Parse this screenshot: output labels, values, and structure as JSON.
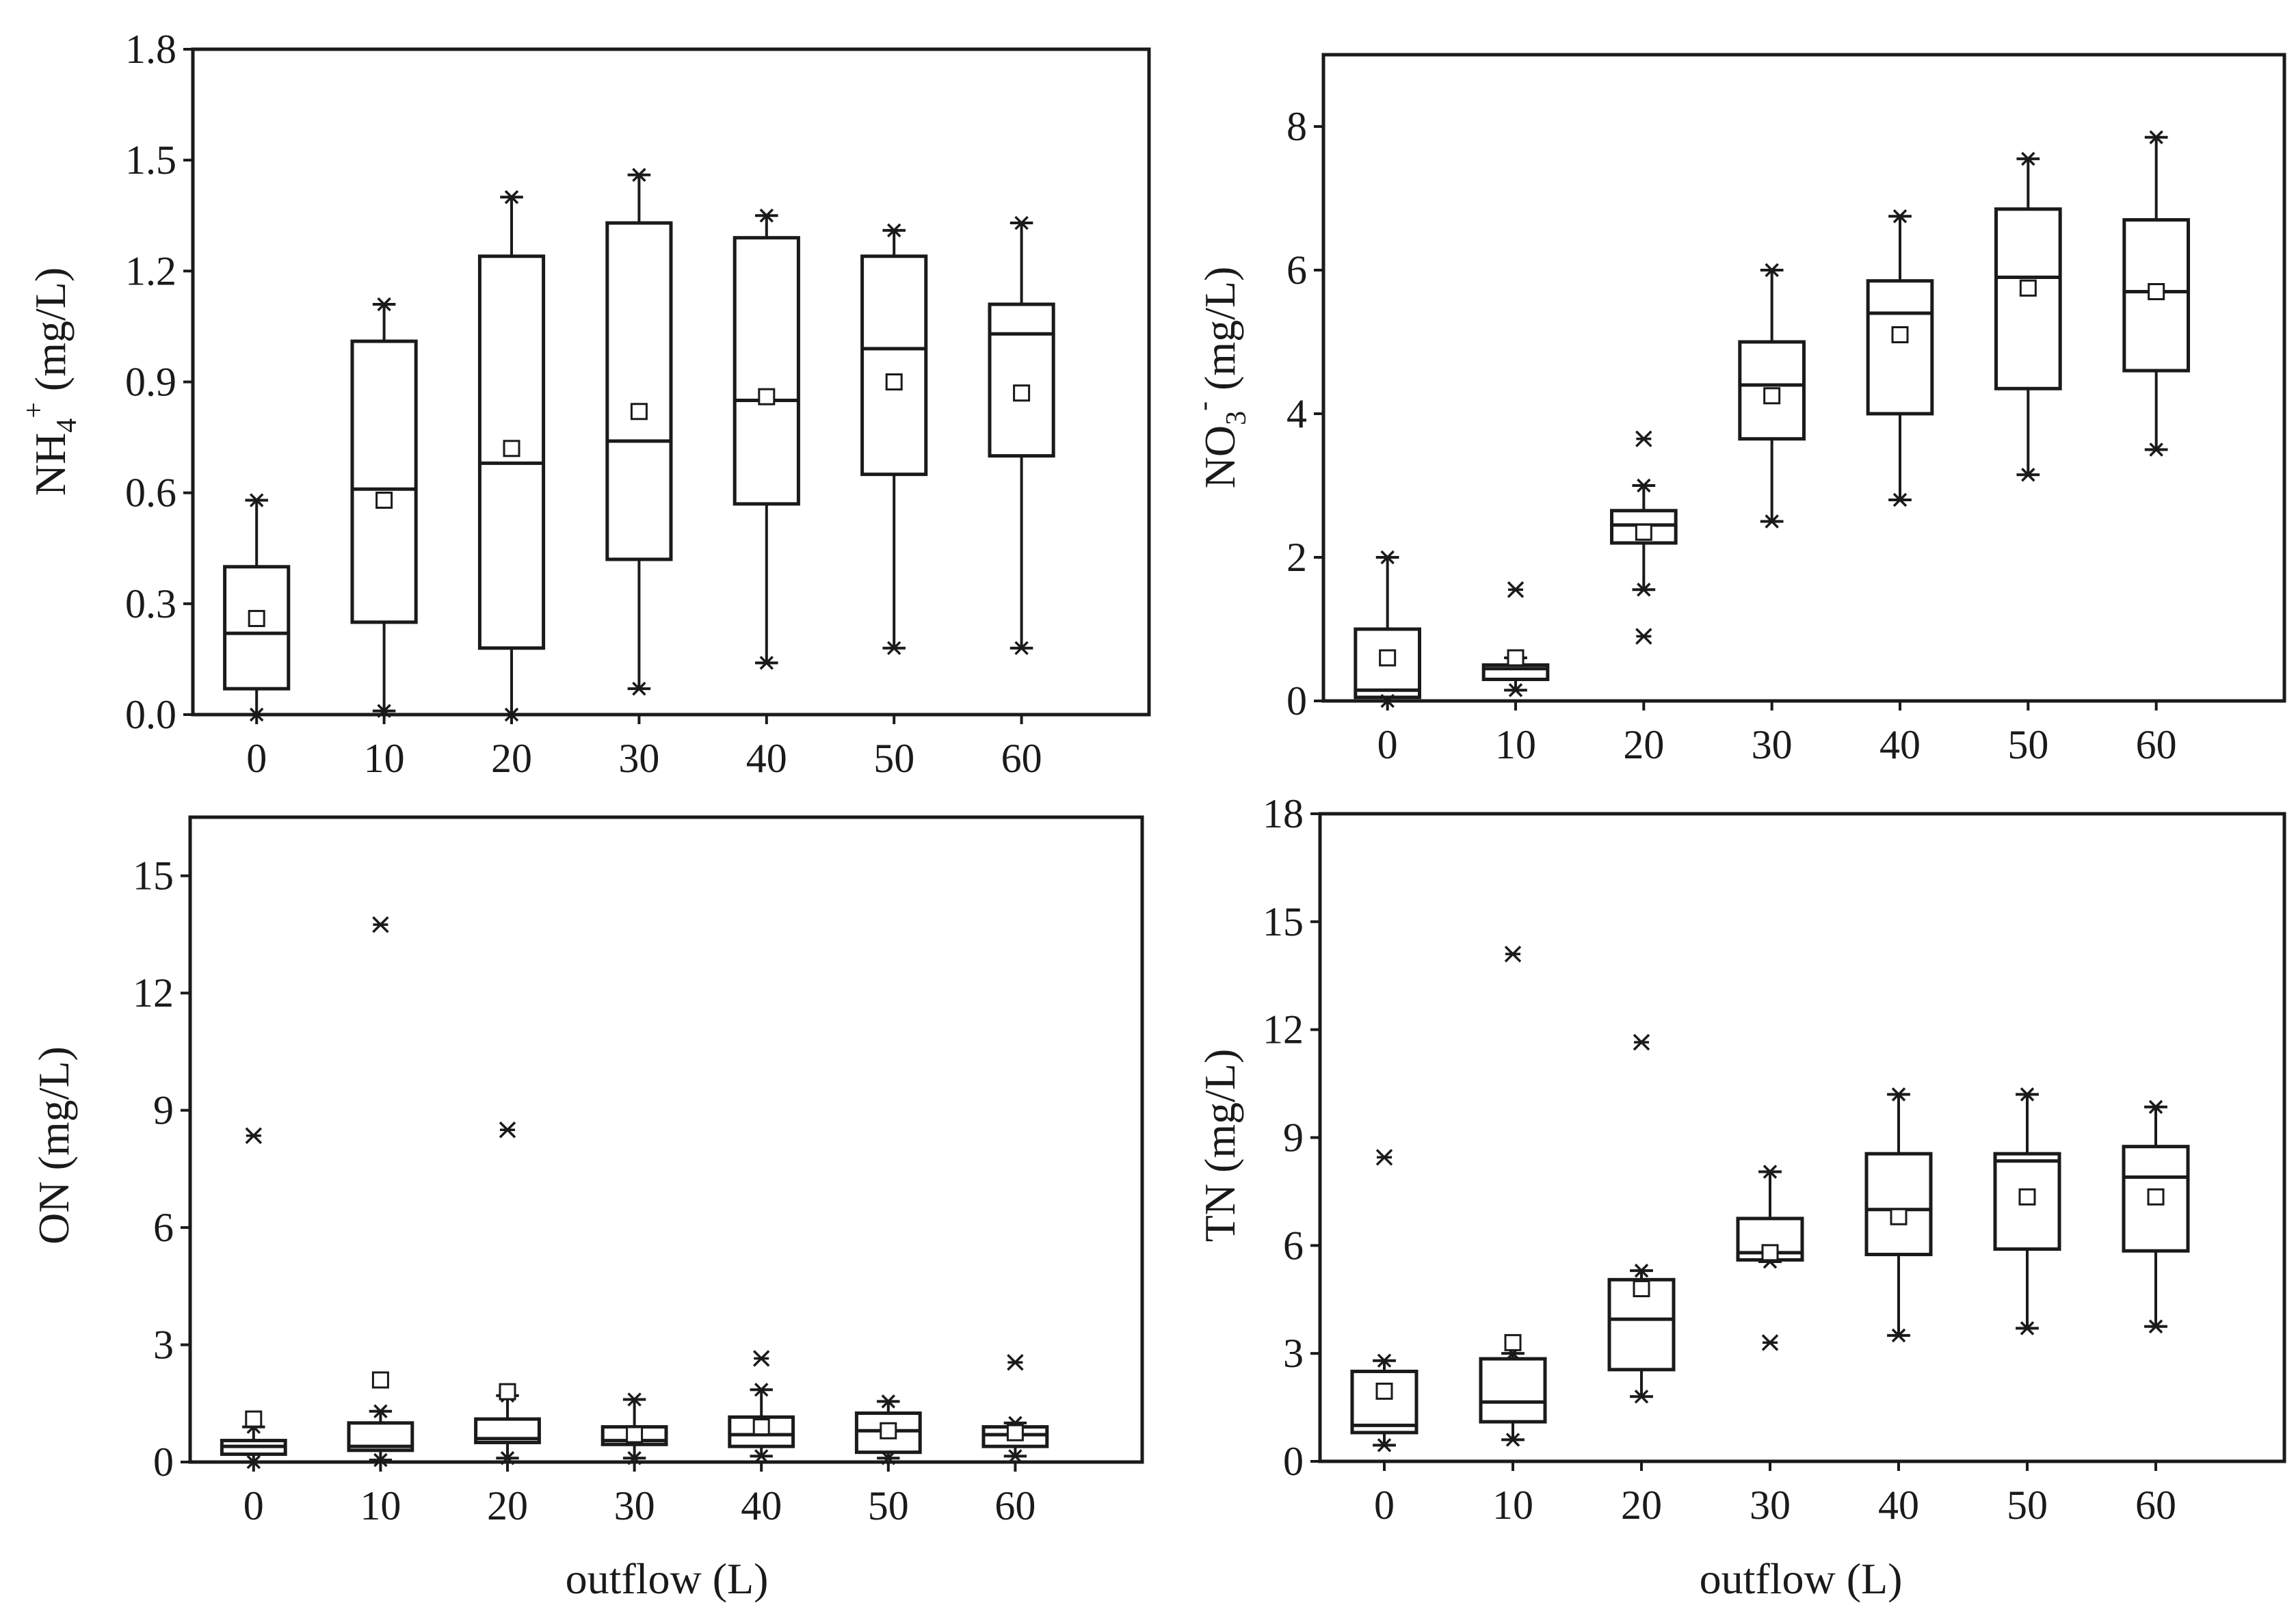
{
  "chart_data": [
    {
      "type": "box",
      "id": "nh4",
      "ylabel": "NH",
      "ylabel_sub": "4",
      "ylabel_sup": "+",
      "ylabel_unit": " (mg/L)",
      "xlabel": "",
      "ylim": [
        0,
        1.8
      ],
      "yticks": [
        "0.0",
        "0.3",
        "0.6",
        "0.9",
        "1.2",
        "1.5",
        "1.8"
      ],
      "ytick_values": [
        0,
        0.3,
        0.6,
        0.9,
        1.2,
        1.5,
        1.8
      ],
      "categories": [
        "0",
        "10",
        "20",
        "30",
        "40",
        "50",
        "60"
      ],
      "boxes": [
        {
          "min": 0.0,
          "q1": 0.07,
          "median": 0.22,
          "q3": 0.4,
          "max": 0.58,
          "mean": 0.26,
          "outliers": []
        },
        {
          "min": 0.01,
          "q1": 0.25,
          "median": 0.61,
          "q3": 1.01,
          "max": 1.11,
          "mean": 0.58,
          "outliers": []
        },
        {
          "min": 0.0,
          "q1": 0.18,
          "median": 0.68,
          "q3": 1.24,
          "max": 1.4,
          "mean": 0.72,
          "outliers": []
        },
        {
          "min": 0.07,
          "q1": 0.42,
          "median": 0.74,
          "q3": 1.33,
          "max": 1.46,
          "mean": 0.82,
          "outliers": []
        },
        {
          "min": 0.14,
          "q1": 0.57,
          "median": 0.85,
          "q3": 1.29,
          "max": 1.35,
          "mean": 0.86,
          "outliers": []
        },
        {
          "min": 0.18,
          "q1": 0.65,
          "median": 0.99,
          "q3": 1.24,
          "max": 1.31,
          "mean": 0.9,
          "outliers": []
        },
        {
          "min": 0.18,
          "q1": 0.7,
          "median": 1.03,
          "q3": 1.11,
          "max": 1.33,
          "mean": 0.87,
          "outliers": []
        }
      ]
    },
    {
      "type": "box",
      "id": "no3",
      "ylabel": "NO",
      "ylabel_sub": "3",
      "ylabel_sup": "-",
      "ylabel_unit": " (mg/L)",
      "xlabel": "",
      "ylim": [
        0,
        9
      ],
      "yticks": [
        "0",
        "2",
        "4",
        "6",
        "8"
      ],
      "ytick_values": [
        0,
        2,
        4,
        6,
        8
      ],
      "categories": [
        "0",
        "10",
        "20",
        "30",
        "40",
        "50",
        "60"
      ],
      "boxes": [
        {
          "min": 0.0,
          "q1": 0.05,
          "median": 0.15,
          "q3": 1.0,
          "max": 2.0,
          "mean": 0.6,
          "outliers": []
        },
        {
          "min": 0.15,
          "q1": 0.3,
          "median": 0.45,
          "q3": 0.5,
          "max": 0.6,
          "mean": 0.6,
          "outliers": [
            1.55
          ]
        },
        {
          "min": 1.55,
          "q1": 2.2,
          "median": 2.45,
          "q3": 2.65,
          "max": 3.0,
          "mean": 2.35,
          "outliers": [
            3.65,
            0.9
          ]
        },
        {
          "min": 2.5,
          "q1": 3.65,
          "median": 4.4,
          "q3": 5.0,
          "max": 6.0,
          "mean": 4.25,
          "outliers": []
        },
        {
          "min": 2.8,
          "q1": 4.0,
          "median": 5.4,
          "q3": 5.85,
          "max": 6.75,
          "mean": 5.1,
          "outliers": []
        },
        {
          "min": 3.15,
          "q1": 4.35,
          "median": 5.9,
          "q3": 6.85,
          "max": 7.55,
          "mean": 5.75,
          "outliers": []
        },
        {
          "min": 3.5,
          "q1": 4.6,
          "median": 5.7,
          "q3": 6.7,
          "max": 7.85,
          "mean": 5.7,
          "outliers": []
        }
      ]
    },
    {
      "type": "box",
      "id": "on",
      "ylabel": "ON (mg/L)",
      "xlabel": "outflow (L)",
      "ylim": [
        0,
        16.5
      ],
      "yticks": [
        "0",
        "3",
        "6",
        "9",
        "12",
        "15"
      ],
      "ytick_values": [
        0,
        3,
        6,
        9,
        12,
        15
      ],
      "categories": [
        "0",
        "10",
        "20",
        "30",
        "40",
        "50",
        "60"
      ],
      "boxes": [
        {
          "min": 0.0,
          "q1": 0.2,
          "median": 0.4,
          "q3": 0.55,
          "max": 0.9,
          "mean": 1.1,
          "outliers": [
            8.35
          ]
        },
        {
          "min": 0.05,
          "q1": 0.3,
          "median": 0.4,
          "q3": 1.0,
          "max": 1.3,
          "mean": 2.1,
          "outliers": [
            13.75
          ]
        },
        {
          "min": 0.1,
          "q1": 0.5,
          "median": 0.6,
          "q3": 1.1,
          "max": 1.7,
          "mean": 1.8,
          "outliers": [
            8.5
          ]
        },
        {
          "min": 0.1,
          "q1": 0.45,
          "median": 0.55,
          "q3": 0.9,
          "max": 1.6,
          "mean": 0.7,
          "outliers": []
        },
        {
          "min": 0.15,
          "q1": 0.4,
          "median": 0.7,
          "q3": 1.15,
          "max": 1.85,
          "mean": 0.9,
          "outliers": [
            2.65
          ]
        },
        {
          "min": 0.1,
          "q1": 0.25,
          "median": 0.8,
          "q3": 1.25,
          "max": 1.55,
          "mean": 0.8,
          "outliers": []
        },
        {
          "min": 0.15,
          "q1": 0.4,
          "median": 0.7,
          "q3": 0.9,
          "max": 1.0,
          "mean": 0.75,
          "outliers": [
            2.55
          ]
        }
      ]
    },
    {
      "type": "box",
      "id": "tn",
      "ylabel": "TN (mg/L)",
      "xlabel": "outflow (L)",
      "ylim": [
        0,
        18
      ],
      "yticks": [
        "0",
        "3",
        "6",
        "9",
        "12",
        "15",
        "18"
      ],
      "ytick_values": [
        0,
        3,
        6,
        9,
        12,
        15,
        18
      ],
      "categories": [
        "0",
        "10",
        "20",
        "30",
        "40",
        "50",
        "60"
      ],
      "boxes": [
        {
          "min": 0.45,
          "q1": 0.8,
          "median": 1.0,
          "q3": 2.5,
          "max": 2.8,
          "mean": 1.95,
          "outliers": [
            8.45
          ]
        },
        {
          "min": 0.6,
          "q1": 1.1,
          "median": 1.65,
          "q3": 2.85,
          "max": 3.0,
          "mean": 3.3,
          "outliers": [
            14.1
          ]
        },
        {
          "min": 1.8,
          "q1": 2.55,
          "median": 3.95,
          "q3": 5.05,
          "max": 5.3,
          "mean": 4.8,
          "outliers": [
            11.65
          ]
        },
        {
          "min": 5.55,
          "q1": 5.6,
          "median": 5.8,
          "q3": 6.75,
          "max": 8.05,
          "mean": 5.8,
          "outliers": [
            3.3
          ]
        },
        {
          "min": 3.5,
          "q1": 5.75,
          "median": 7.0,
          "q3": 8.55,
          "max": 10.2,
          "mean": 6.8,
          "outliers": []
        },
        {
          "min": 3.7,
          "q1": 5.9,
          "median": 8.35,
          "q3": 8.55,
          "max": 10.2,
          "mean": 7.35,
          "outliers": []
        },
        {
          "min": 3.75,
          "q1": 5.85,
          "median": 7.9,
          "q3": 8.75,
          "max": 9.85,
          "mean": 7.35,
          "outliers": []
        }
      ]
    }
  ]
}
